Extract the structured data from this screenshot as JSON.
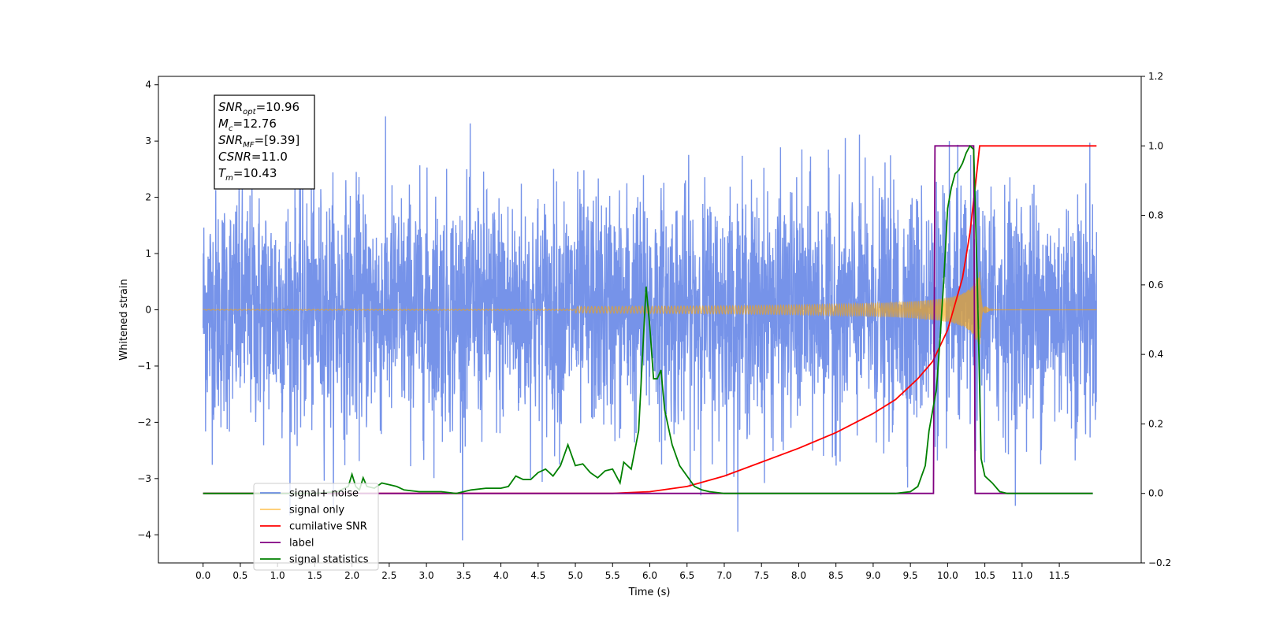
{
  "chart_data": {
    "type": "line",
    "xlabel": "Time (s)",
    "ylabel": "Whitened strain",
    "xlim": [
      -0.6,
      12.6
    ],
    "ylim": [
      -4.5,
      4.15
    ],
    "y2lim": [
      -0.2,
      1.2
    ],
    "x_ticks": [
      "0.0",
      "0.5",
      "1.0",
      "1.5",
      "2.0",
      "2.5",
      "3.0",
      "3.5",
      "4.0",
      "4.5",
      "5.0",
      "5.5",
      "6.0",
      "6.5",
      "7.0",
      "7.5",
      "8.0",
      "8.5",
      "9.0",
      "9.5",
      "10.0",
      "10.5",
      "11.0",
      "11.5"
    ],
    "y_ticks": [
      "4",
      "3",
      "2",
      "1",
      "0",
      "−1",
      "−2",
      "−3",
      "−4"
    ],
    "y2_ticks": [
      "1.2",
      "1.0",
      "0.8",
      "0.6",
      "0.4",
      "0.2",
      "0.0",
      "−0.2"
    ],
    "legend_position": "lower-left",
    "annotation": {
      "box_position": "top-left",
      "lines": [
        {
          "sym": "SNR",
          "sub": "opt",
          "val": "=10.96"
        },
        {
          "sym": "M",
          "sub": "c",
          "val": "=12.76"
        },
        {
          "sym": "SNR",
          "sub": "MF",
          "val": "=[9.39]"
        },
        {
          "sym": "CSNR",
          "sub": "",
          "val": "=11.0"
        },
        {
          "sym": "T",
          "sub": "m",
          "val": "=10.43"
        }
      ]
    },
    "series": [
      {
        "name": "signal+ noise",
        "color": "#4169e1",
        "axis": "left",
        "style": "noise",
        "t_range": [
          0,
          12
        ],
        "sigma": 1.05
      },
      {
        "name": "signal only",
        "color": "#ffa500",
        "axis": "left",
        "style": "chirp",
        "t_range": [
          0,
          12
        ],
        "merger_time": 10.43,
        "peak_amplitude": 0.85
      },
      {
        "name": "cumilative SNR",
        "color": "#ff0000",
        "axis": "right",
        "x": [
          0,
          5.5,
          6.0,
          6.5,
          7.0,
          7.5,
          8.0,
          8.5,
          9.0,
          9.3,
          9.6,
          9.8,
          10.0,
          10.2,
          10.3,
          10.38,
          10.43,
          10.5,
          11.0,
          11.5,
          12.0
        ],
        "y": [
          0,
          0,
          0.005,
          0.02,
          0.05,
          0.09,
          0.13,
          0.175,
          0.23,
          0.27,
          0.33,
          0.38,
          0.47,
          0.62,
          0.75,
          0.9,
          1.0,
          1.0,
          1.0,
          1.0,
          1.0
        ]
      },
      {
        "name": "label",
        "color": "#800080",
        "axis": "right",
        "x": [
          0,
          9.81,
          9.83,
          10.35,
          10.37,
          11.95
        ],
        "y": [
          0,
          0,
          1,
          1,
          0,
          0
        ]
      },
      {
        "name": "signal statistics",
        "color": "#008000",
        "axis": "right",
        "x": [
          0,
          1.5,
          1.8,
          1.95,
          2.0,
          2.05,
          2.1,
          2.15,
          2.2,
          2.3,
          2.4,
          2.5,
          2.6,
          2.7,
          2.9,
          3.2,
          3.4,
          3.6,
          3.8,
          4.0,
          4.1,
          4.2,
          4.3,
          4.4,
          4.5,
          4.6,
          4.7,
          4.8,
          4.9,
          5.0,
          5.1,
          5.2,
          5.3,
          5.4,
          5.5,
          5.6,
          5.65,
          5.75,
          5.85,
          5.95,
          6.0,
          6.05,
          6.1,
          6.15,
          6.2,
          6.3,
          6.4,
          6.5,
          6.6,
          6.7,
          6.8,
          7.0,
          7.2,
          7.5,
          8.0,
          8.5,
          9.0,
          9.3,
          9.5,
          9.6,
          9.65,
          9.7,
          9.75,
          9.8,
          9.85,
          9.9,
          9.95,
          10.0,
          10.05,
          10.1,
          10.15,
          10.2,
          10.25,
          10.3,
          10.35,
          10.4,
          10.45,
          10.5,
          10.6,
          10.7,
          10.8,
          11.0,
          11.5,
          11.95
        ],
        "y": [
          0,
          0,
          0.005,
          0.02,
          0.055,
          0.02,
          0.01,
          0.045,
          0.02,
          0.015,
          0.03,
          0.025,
          0.02,
          0.01,
          0.005,
          0.005,
          0.0,
          0.01,
          0.015,
          0.015,
          0.02,
          0.05,
          0.04,
          0.04,
          0.06,
          0.07,
          0.05,
          0.08,
          0.14,
          0.08,
          0.085,
          0.06,
          0.045,
          0.065,
          0.07,
          0.03,
          0.09,
          0.07,
          0.18,
          0.595,
          0.48,
          0.33,
          0.33,
          0.355,
          0.24,
          0.14,
          0.08,
          0.05,
          0.02,
          0.01,
          0.005,
          0.0,
          0.0,
          0.0,
          0.0,
          0.0,
          0.0,
          0.0,
          0.005,
          0.02,
          0.05,
          0.08,
          0.18,
          0.24,
          0.3,
          0.45,
          0.62,
          0.82,
          0.88,
          0.92,
          0.93,
          0.95,
          0.98,
          1.0,
          0.99,
          0.6,
          0.1,
          0.05,
          0.03,
          0.005,
          0.0,
          0.0,
          0.0,
          0.0
        ]
      }
    ]
  }
}
